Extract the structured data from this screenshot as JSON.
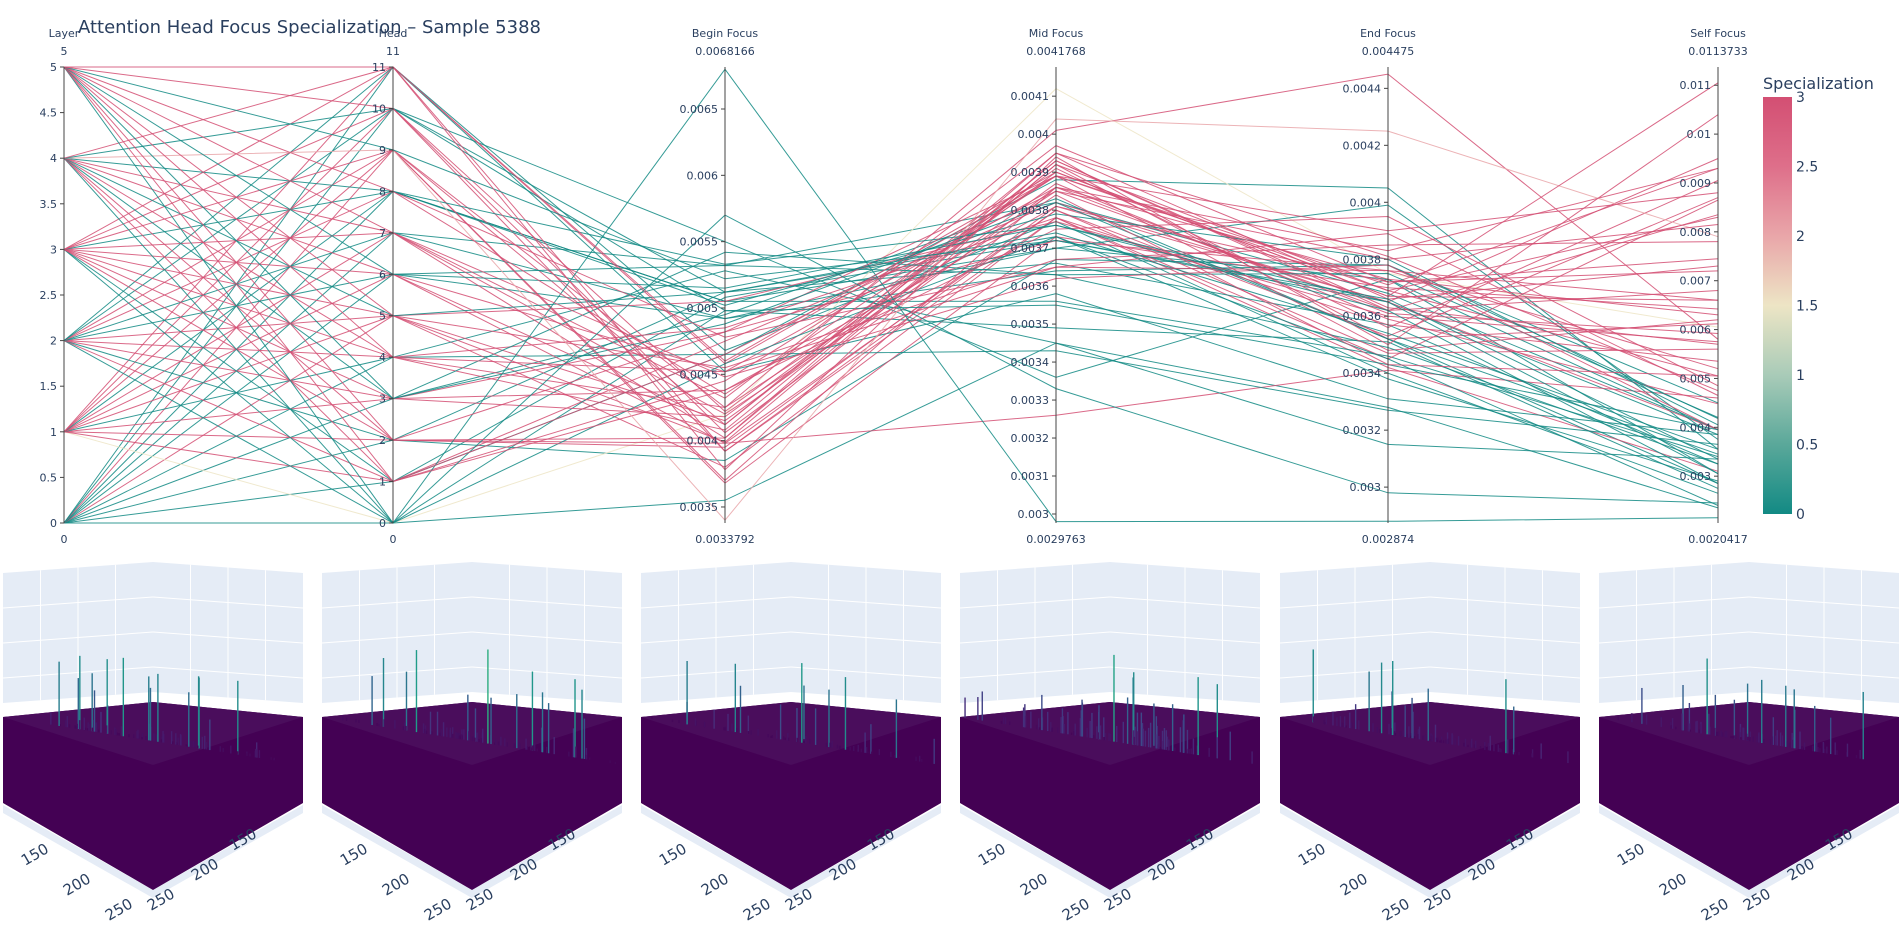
{
  "title": "Attention Head Focus Specialization – Sample 5388",
  "chart_data": [
    {
      "type": "parallel_coordinates",
      "dimensions": [
        {
          "name": "Layer",
          "range": [
            0,
            5
          ],
          "min_label": "0",
          "max_label": "5",
          "ticks": [
            0,
            0.5,
            1,
            1.5,
            2,
            2.5,
            3,
            3.5,
            4,
            4.5,
            5
          ],
          "tick_labels": [
            "0",
            "0.5",
            "1",
            "1.5",
            "2",
            "2.5",
            "3",
            "3.5",
            "4",
            "4.5",
            "5"
          ]
        },
        {
          "name": "Head",
          "range": [
            0,
            11
          ],
          "min_label": "0",
          "max_label": "11",
          "ticks": [
            0,
            1,
            2,
            3,
            4,
            5,
            6,
            7,
            8,
            9,
            10,
            11
          ],
          "tick_labels": [
            "0",
            "1",
            "2",
            "3",
            "4",
            "5",
            "6",
            "7",
            "8",
            "9",
            "10",
            "11"
          ]
        },
        {
          "name": "Begin Focus",
          "range": [
            0.0033792,
            0.0068166
          ],
          "min_label": "0.0033792",
          "max_label": "0.0068166",
          "ticks": [
            0.0035,
            0.004,
            0.0045,
            0.005,
            0.0055,
            0.006,
            0.0065
          ],
          "tick_labels": [
            "0.0035",
            "0.004",
            "0.0045",
            "0.005",
            "0.0055",
            "0.006",
            "0.0065"
          ]
        },
        {
          "name": "Mid Focus",
          "range": [
            0.0029763,
            0.0041768
          ],
          "min_label": "0.0029763",
          "max_label": "0.0041768",
          "ticks": [
            0.003,
            0.0031,
            0.0032,
            0.0033,
            0.0034,
            0.0035,
            0.0036,
            0.0037,
            0.0038,
            0.0039,
            0.004,
            0.0041
          ],
          "tick_labels": [
            "0.003",
            "0.0031",
            "0.0032",
            "0.0033",
            "0.0034",
            "0.0035",
            "0.0036",
            "0.0037",
            "0.0038",
            "0.0039",
            "0.004",
            "0.0041"
          ]
        },
        {
          "name": "End Focus",
          "range": [
            0.002874,
            0.004475
          ],
          "min_label": "0.002874",
          "max_label": "0.004475",
          "ticks": [
            0.003,
            0.0032,
            0.0034,
            0.0036,
            0.0038,
            0.004,
            0.0042,
            0.0044
          ],
          "tick_labels": [
            "0.003",
            "0.0032",
            "0.0034",
            "0.0036",
            "0.0038",
            "0.004",
            "0.0042",
            "0.0044"
          ]
        },
        {
          "name": "Self Focus",
          "range": [
            0.0020417,
            0.0113733
          ],
          "min_label": "0.0020417",
          "max_label": "0.0113733",
          "ticks": [
            0.003,
            0.004,
            0.005,
            0.006,
            0.007,
            0.008,
            0.009,
            0.01,
            0.011
          ],
          "tick_labels": [
            "0.003",
            "0.004",
            "0.005",
            "0.006",
            "0.007",
            "0.008",
            "0.009",
            "0.01",
            "0.011"
          ]
        }
      ],
      "colorbar": {
        "title": "Specialization",
        "range": [
          0,
          3
        ],
        "ticks": [
          "0",
          "0.5",
          "1",
          "1.5",
          "2",
          "2.5",
          "3"
        ],
        "colors": [
          "#128a84",
          "#5aa89a",
          "#a9cbb8",
          "#ede5c5",
          "#e9a6a9",
          "#de6f8a",
          "#d34f73"
        ]
      },
      "lines": [
        {
          "l": 0,
          "h": 0,
          "b": 0.00355,
          "m": 0.00345,
          "e": 0.00328,
          "s": 0.00235,
          "c": 0
        },
        {
          "l": 0,
          "h": 1,
          "b": 0.00508,
          "m": 0.00372,
          "e": 0.00365,
          "s": 0.00385,
          "c": 0
        },
        {
          "l": 0,
          "h": 2,
          "b": 0.00385,
          "m": 0.00367,
          "e": 0.00378,
          "s": 0.00418,
          "c": 0
        },
        {
          "l": 0,
          "h": 3,
          "b": 0.00495,
          "m": 0.00383,
          "e": 0.00352,
          "s": 0.00285,
          "c": 0
        },
        {
          "l": 0,
          "h": 4,
          "b": 0.00465,
          "m": 0.00388,
          "e": 0.00405,
          "s": 0.00355,
          "c": 0
        },
        {
          "l": 0,
          "h": 5,
          "b": 0.0038,
          "m": 0.00378,
          "e": 0.00342,
          "s": 0.0031,
          "c": 3
        },
        {
          "l": 0,
          "h": 6,
          "b": 0.00492,
          "m": 0.00364,
          "e": 0.00378,
          "s": 0.0045,
          "c": 0
        },
        {
          "l": 0,
          "h": 7,
          "b": 0.00532,
          "m": 0.00382,
          "e": 0.00368,
          "s": 0.00395,
          "c": 0
        },
        {
          "l": 0,
          "h": 8,
          "b": 0.00505,
          "m": 0.00356,
          "e": 0.00346,
          "s": 0.0034,
          "c": 0
        },
        {
          "l": 0,
          "h": 9,
          "b": 0.00412,
          "m": 0.00393,
          "e": 0.00363,
          "s": 0.0057,
          "c": 3
        },
        {
          "l": 0,
          "h": 10,
          "b": 0.0055,
          "m": 0.00336,
          "e": 0.00373,
          "s": 0.00305,
          "c": 0
        },
        {
          "l": 0,
          "h": 11,
          "b": 0.00468,
          "m": 0.00377,
          "e": 0.0034,
          "s": 0.00265,
          "c": 0
        },
        {
          "l": 1,
          "h": 0,
          "b": 0.0042,
          "m": 0.00412,
          "e": 0.00375,
          "s": 0.00605,
          "c": 1.5
        },
        {
          "l": 1,
          "h": 1,
          "b": 0.00475,
          "m": 0.00382,
          "e": 0.00365,
          "s": 0.00395,
          "c": 3
        },
        {
          "l": 1,
          "h": 2,
          "b": 0.00398,
          "m": 0.00326,
          "e": 0.00341,
          "s": 0.0046,
          "c": 3
        },
        {
          "l": 1,
          "h": 3,
          "b": 0.00482,
          "m": 0.00372,
          "e": 0.00376,
          "s": 0.0052,
          "c": 3
        },
        {
          "l": 1,
          "h": 4,
          "b": 0.00528,
          "m": 0.00345,
          "e": 0.00315,
          "s": 0.00335,
          "c": 0
        },
        {
          "l": 1,
          "h": 5,
          "b": 0.00415,
          "m": 0.00387,
          "e": 0.00359,
          "s": 0.00448,
          "c": 3
        },
        {
          "l": 1,
          "h": 6,
          "b": 0.00452,
          "m": 0.00386,
          "e": 0.00383,
          "s": 0.0093,
          "c": 3
        },
        {
          "l": 1,
          "h": 7,
          "b": 0.00402,
          "m": 0.00392,
          "e": 0.00352,
          "s": 0.00612,
          "c": 3
        },
        {
          "l": 1,
          "h": 8,
          "b": 0.00505,
          "m": 0.0037,
          "e": 0.00373,
          "s": 0.00395,
          "c": 0
        },
        {
          "l": 1,
          "h": 9,
          "b": 0.00368,
          "m": 0.00373,
          "e": 0.0037,
          "s": 0.00642,
          "c": 3
        },
        {
          "l": 1,
          "h": 10,
          "b": 0.00392,
          "m": 0.00378,
          "e": 0.00345,
          "s": 0.00865,
          "c": 3
        },
        {
          "l": 1,
          "h": 11,
          "b": 0.00458,
          "m": 0.00389,
          "e": 0.00369,
          "s": 0.00505,
          "c": 3
        },
        {
          "l": 2,
          "h": 0,
          "b": 0.00498,
          "m": 0.00349,
          "e": 0.00351,
          "s": 0.00275,
          "c": 0
        },
        {
          "l": 2,
          "h": 1,
          "b": 0.00445,
          "m": 0.00389,
          "e": 0.00348,
          "s": 0.0062,
          "c": 3
        },
        {
          "l": 2,
          "h": 2,
          "b": 0.00512,
          "m": 0.00366,
          "e": 0.00357,
          "s": 0.00325,
          "c": 0
        },
        {
          "l": 2,
          "h": 3,
          "b": 0.00438,
          "m": 0.00381,
          "e": 0.00372,
          "s": 0.00745,
          "c": 3
        },
        {
          "l": 2,
          "h": 4,
          "b": 0.00408,
          "m": 0.00393,
          "e": 0.00362,
          "s": 0.00835,
          "c": 3
        },
        {
          "l": 2,
          "h": 5,
          "b": 0.00505,
          "m": 0.00377,
          "e": 0.0036,
          "s": 0.00575,
          "c": 3
        },
        {
          "l": 2,
          "h": 6,
          "b": 0.00532,
          "m": 0.00363,
          "e": 0.00349,
          "s": 0.00325,
          "c": 0
        },
        {
          "l": 2,
          "h": 7,
          "b": 0.00492,
          "m": 0.0037,
          "e": 0.00399,
          "s": 0.00375,
          "c": 0
        },
        {
          "l": 2,
          "h": 8,
          "b": 0.00478,
          "m": 0.00365,
          "e": 0.00389,
          "s": 0.00465,
          "c": 3
        },
        {
          "l": 2,
          "h": 9,
          "b": 0.00425,
          "m": 0.00385,
          "e": 0.00362,
          "s": 0.0068,
          "c": 3
        },
        {
          "l": 2,
          "h": 10,
          "b": 0.00512,
          "m": 0.00373,
          "e": 0.00338,
          "s": 0.0029,
          "c": 0
        },
        {
          "l": 2,
          "h": 11,
          "b": 0.00452,
          "m": 0.00358,
          "e": 0.00331,
          "s": 0.00385,
          "c": 0
        },
        {
          "l": 3,
          "h": 0,
          "b": 0.00458,
          "m": 0.00373,
          "e": 0.00345,
          "s": 0.0024,
          "c": 0
        },
        {
          "l": 3,
          "h": 1,
          "b": 0.00465,
          "m": 0.00343,
          "e": 0.00327,
          "s": 0.00365,
          "c": 0
        },
        {
          "l": 3,
          "h": 2,
          "b": 0.00395,
          "m": 0.00381,
          "e": 0.00365,
          "s": 0.0095,
          "c": 3
        },
        {
          "l": 3,
          "h": 3,
          "b": 0.00418,
          "m": 0.0039,
          "e": 0.00367,
          "s": 0.0066,
          "c": 3
        },
        {
          "l": 3,
          "h": 4,
          "b": 0.00485,
          "m": 0.00378,
          "e": 0.00357,
          "s": 0.00535,
          "c": 3
        },
        {
          "l": 3,
          "h": 5,
          "b": 0.00455,
          "m": 0.00367,
          "e": 0.00385,
          "s": 0.0078,
          "c": 3
        },
        {
          "l": 3,
          "h": 6,
          "b": 0.00398,
          "m": 0.0038,
          "e": 0.00353,
          "s": 0.0087,
          "c": 3
        },
        {
          "l": 3,
          "h": 7,
          "b": 0.00432,
          "m": 0.00397,
          "e": 0.00372,
          "s": 0.0072,
          "c": 3
        },
        {
          "l": 3,
          "h": 8,
          "b": 0.00502,
          "m": 0.00379,
          "e": 0.0038,
          "s": 0.00405,
          "c": 0
        },
        {
          "l": 3,
          "h": 9,
          "b": 0.0037,
          "m": 0.00386,
          "e": 0.00361,
          "s": 0.00592,
          "c": 3
        },
        {
          "l": 3,
          "h": 10,
          "b": 0.00422,
          "m": 0.00391,
          "e": 0.00356,
          "s": 0.00905,
          "c": 3
        },
        {
          "l": 3,
          "h": 11,
          "b": 0.00392,
          "m": 0.0038,
          "e": 0.00347,
          "s": 0.0056,
          "c": 3
        },
        {
          "l": 4,
          "h": 0,
          "b": 0.0068,
          "m": 0.00298,
          "e": 0.00288,
          "s": 0.00215,
          "c": 0
        },
        {
          "l": 4,
          "h": 1,
          "b": 0.00438,
          "m": 0.00375,
          "e": 0.00395,
          "s": 0.00485,
          "c": 3
        },
        {
          "l": 4,
          "h": 2,
          "b": 0.00482,
          "m": 0.00389,
          "e": 0.00371,
          "s": 0.0093,
          "c": 3
        },
        {
          "l": 4,
          "h": 3,
          "b": 0.00542,
          "m": 0.00363,
          "e": 0.00375,
          "s": 0.0042,
          "c": 0
        },
        {
          "l": 4,
          "h": 4,
          "b": 0.00425,
          "m": 0.00401,
          "e": 0.00445,
          "s": 0.0058,
          "c": 3
        },
        {
          "l": 4,
          "h": 5,
          "b": 0.00512,
          "m": 0.00374,
          "e": 0.00354,
          "s": 0.00355,
          "c": 0
        },
        {
          "l": 4,
          "h": 6,
          "b": 0.00412,
          "m": 0.00395,
          "e": 0.00381,
          "s": 0.00475,
          "c": 3
        },
        {
          "l": 4,
          "h": 7,
          "b": 0.00448,
          "m": 0.00362,
          "e": 0.00378,
          "s": 0.00395,
          "c": 3
        },
        {
          "l": 4,
          "h": 8,
          "b": 0.00533,
          "m": 0.00376,
          "e": 0.00365,
          "s": 0.00305,
          "c": 0
        },
        {
          "l": 4,
          "h": 9,
          "b": 0.0034,
          "m": 0.00404,
          "e": 0.00425,
          "s": 0.0079,
          "c": 2
        },
        {
          "l": 4,
          "h": 10,
          "b": 0.00498,
          "m": 0.00355,
          "e": 0.00343,
          "s": 0.00395,
          "c": 0
        },
        {
          "l": 4,
          "h": 11,
          "b": 0.0046,
          "m": 0.0039,
          "e": 0.00367,
          "s": 0.01105,
          "c": 3
        },
        {
          "l": 5,
          "h": 0,
          "b": 0.0057,
          "m": 0.00333,
          "e": 0.00298,
          "s": 0.00245,
          "c": 0
        },
        {
          "l": 5,
          "h": 1,
          "b": 0.00465,
          "m": 0.00385,
          "e": 0.0038,
          "s": 0.00815,
          "c": 3
        },
        {
          "l": 5,
          "h": 2,
          "b": 0.00402,
          "m": 0.00395,
          "e": 0.00366,
          "s": 0.0073,
          "c": 3
        },
        {
          "l": 5,
          "h": 3,
          "b": 0.00488,
          "m": 0.00382,
          "e": 0.00352,
          "s": 0.00345,
          "c": 0
        },
        {
          "l": 5,
          "h": 4,
          "b": 0.00452,
          "m": 0.00365,
          "e": 0.00376,
          "s": 0.0066,
          "c": 3
        },
        {
          "l": 5,
          "h": 5,
          "b": 0.00399,
          "m": 0.00392,
          "e": 0.00369,
          "s": 0.0083,
          "c": 3
        },
        {
          "l": 5,
          "h": 6,
          "b": 0.00515,
          "m": 0.00376,
          "e": 0.00362,
          "s": 0.00285,
          "c": 0
        },
        {
          "l": 5,
          "h": 7,
          "b": 0.0042,
          "m": 0.00384,
          "e": 0.00343,
          "s": 0.00505,
          "c": 3
        },
        {
          "l": 5,
          "h": 8,
          "b": 0.00435,
          "m": 0.00389,
          "e": 0.0039,
          "s": 0.0088,
          "c": 3
        },
        {
          "l": 5,
          "h": 9,
          "b": 0.00522,
          "m": 0.00372,
          "e": 0.00366,
          "s": 0.00335,
          "c": 0
        },
        {
          "l": 5,
          "h": 10,
          "b": 0.00406,
          "m": 0.00386,
          "e": 0.00373,
          "s": 0.0063,
          "c": 3
        },
        {
          "l": 5,
          "h": 11,
          "b": 0.00378,
          "m": 0.00394,
          "e": 0.0035,
          "s": 0.0104,
          "c": 3
        }
      ]
    },
    {
      "type": "surface3d",
      "panels": [
        {
          "peaks": [
            [
              0.2,
              0.3,
              1.0
            ],
            [
              0.5,
              0.2,
              0.9
            ],
            [
              0.8,
              0.4,
              0.7
            ],
            [
              0.3,
              0.7,
              0.6
            ],
            [
              0.7,
              0.8,
              0.55
            ]
          ],
          "noise": 0.1
        },
        {
          "peaks": [
            [
              0.4,
              0.3,
              1.0
            ],
            [
              0.6,
              0.5,
              0.8
            ],
            [
              0.25,
              0.6,
              0.6
            ],
            [
              0.8,
              0.3,
              0.7
            ]
          ],
          "noise": 0.1
        },
        {
          "peaks": [
            [
              0.5,
              0.15,
              1.0
            ]
          ],
          "noise": 0.06
        },
        {
          "peaks": [
            [
              0.5,
              0.5,
              1.0
            ],
            [
              0.3,
              0.4,
              0.6
            ],
            [
              0.7,
              0.6,
              0.5
            ]
          ],
          "noise": 0.3
        },
        {
          "peaks": [
            [
              0.5,
              0.25,
              1.0
            ],
            [
              0.35,
              0.55,
              0.5
            ],
            [
              0.75,
              0.4,
              0.45
            ]
          ],
          "noise": 0.12
        },
        {
          "peaks": [
            [
              0.3,
              0.3,
              1.0
            ],
            [
              0.6,
              0.2,
              0.8
            ],
            [
              0.5,
              0.7,
              0.3
            ]
          ],
          "noise": 0.15
        }
      ],
      "left_axis_ticks": [
        "150",
        "200",
        "250"
      ],
      "right_axis_ticks": [
        "150",
        "200",
        "250"
      ],
      "colorscale": [
        "#440154",
        "#482878",
        "#3e4989",
        "#31688e",
        "#26828e",
        "#1f9e89",
        "#35b779",
        "#6ece58",
        "#b5de2b",
        "#fde725"
      ]
    }
  ]
}
